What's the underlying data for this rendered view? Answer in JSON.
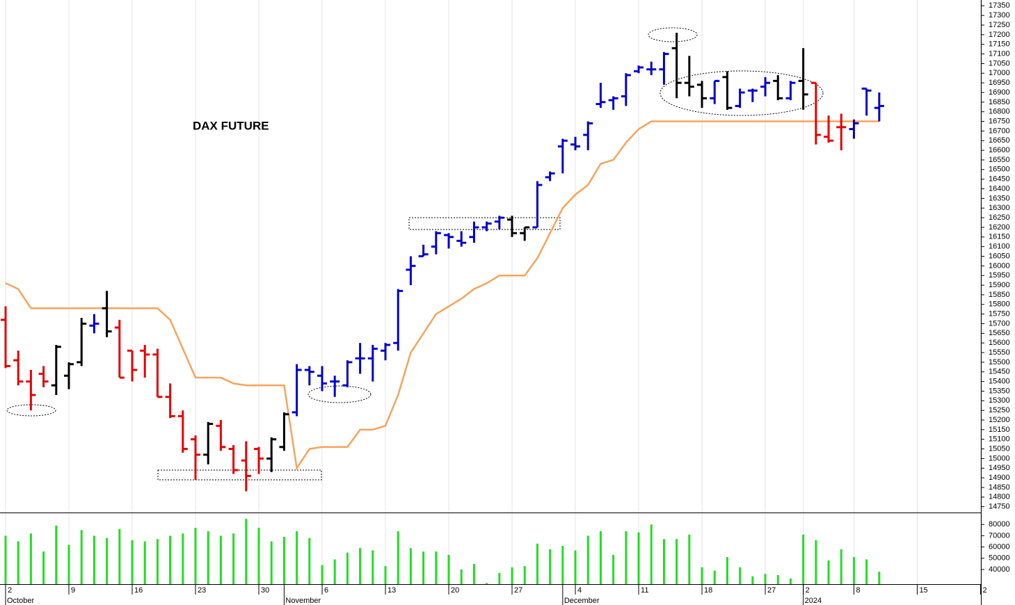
{
  "chart_data": {
    "type": "ohlc",
    "title": "DAX FUTURE",
    "xlim": [
      -0.44,
      77.03
    ],
    "xticks": [
      {
        "value": 0,
        "label": "2"
      },
      {
        "value": 5,
        "label": "9"
      },
      {
        "value": 10,
        "label": "16"
      },
      {
        "value": 15,
        "label": "23"
      },
      {
        "value": 20,
        "label": "30"
      },
      {
        "value": 25,
        "label": "6"
      },
      {
        "value": 30,
        "label": "13"
      },
      {
        "value": 35,
        "label": "20"
      },
      {
        "value": 40,
        "label": "27"
      },
      {
        "value": 45,
        "label": "4"
      },
      {
        "value": 50,
        "label": "11"
      },
      {
        "value": 55,
        "label": "18"
      },
      {
        "value": 60,
        "label": "27"
      },
      {
        "value": 63,
        "label": "2"
      },
      {
        "value": 67,
        "label": "8"
      },
      {
        "value": 72,
        "label": "15"
      },
      {
        "value": 77,
        "label": "2"
      }
    ],
    "months": [
      {
        "value": 0,
        "label": "October"
      },
      {
        "value": 22,
        "label": "November"
      },
      {
        "value": 44,
        "label": "December"
      },
      {
        "value": 63,
        "label": "2024"
      }
    ],
    "ylim": [
      14720,
      17380
    ],
    "yticks": [
      14750,
      14800,
      14850,
      14900,
      14950,
      15000,
      15050,
      15100,
      15150,
      15200,
      15250,
      15300,
      15350,
      15400,
      15450,
      15500,
      15550,
      15600,
      15650,
      15700,
      15750,
      15800,
      15850,
      15900,
      15950,
      16000,
      16050,
      16100,
      16150,
      16200,
      16250,
      16300,
      16350,
      16400,
      16450,
      16500,
      16550,
      16600,
      16650,
      16700,
      16750,
      16800,
      16850,
      16900,
      16950,
      17000,
      17050,
      17100,
      17150,
      17200,
      17250,
      17300,
      17350
    ],
    "grid": true,
    "open": [
      15720,
      15510,
      15400,
      15440,
      15380,
      15430,
      15500,
      15690,
      15780,
      15680,
      15560,
      15560,
      15540,
      15320,
      15220,
      15100,
      15020,
      15170,
      15050,
      14990,
      15050,
      15000,
      15060,
      15240,
      15460,
      15430,
      15400,
      15380,
      15520,
      15520,
      15560,
      15600,
      15980,
      16050,
      16100,
      16160,
      16130,
      16150,
      16200,
      16230,
      16240,
      16170,
      16200,
      16460,
      16620,
      16630,
      16680,
      16840,
      16860,
      16880,
      17010,
      17020,
      17020,
      17130,
      16950,
      16940,
      16870,
      16980,
      16830,
      16910,
      16930,
      16960,
      16870,
      16960,
      16950,
      16670,
      16720,
      16710,
      16920,
      16820
    ],
    "high": [
      15790,
      15560,
      15460,
      15480,
      15590,
      15500,
      15730,
      15750,
      15870,
      15720,
      15560,
      15590,
      15570,
      15390,
      15250,
      15120,
      15190,
      15200,
      15070,
      15090,
      15060,
      15110,
      15240,
      15490,
      15480,
      15480,
      15430,
      15510,
      15600,
      15590,
      15600,
      15880,
      16050,
      16110,
      16180,
      16170,
      16180,
      16230,
      16230,
      16260,
      16260,
      16200,
      16440,
      16490,
      16660,
      16670,
      16750,
      16950,
      16880,
      17000,
      17040,
      17060,
      17110,
      17210,
      17090,
      16960,
      16960,
      17010,
      16920,
      16920,
      16980,
      16990,
      16960,
      17130,
      16950,
      16780,
      16790,
      16760,
      16920,
      16900
    ],
    "low": [
      15470,
      15380,
      15250,
      15370,
      15330,
      15360,
      15480,
      15650,
      15630,
      15420,
      15400,
      15420,
      15320,
      15210,
      15030,
      14890,
      14970,
      15040,
      14920,
      14830,
      14920,
      14930,
      15040,
      15220,
      15380,
      15350,
      15320,
      15370,
      15440,
      15400,
      15510,
      15560,
      15900,
      16050,
      16060,
      16090,
      16100,
      16120,
      16180,
      16190,
      16150,
      16130,
      16200,
      16440,
      16480,
      16600,
      16600,
      16820,
      16810,
      16830,
      17000,
      16990,
      16940,
      16870,
      16880,
      16820,
      16840,
      16810,
      16820,
      16850,
      16880,
      16860,
      16860,
      16810,
      16630,
      16640,
      16600,
      16660,
      16780,
      16750
    ],
    "close": [
      15480,
      15400,
      15330,
      15400,
      15580,
      15490,
      15700,
      15700,
      15660,
      15420,
      15460,
      15540,
      15320,
      15220,
      15050,
      15020,
      15180,
      15060,
      14940,
      14910,
      15000,
      15100,
      15230,
      15460,
      15450,
      15390,
      15400,
      15500,
      15520,
      15570,
      15590,
      15870,
      16000,
      16060,
      16170,
      16150,
      16120,
      16200,
      16220,
      16250,
      16170,
      16200,
      16420,
      16480,
      16650,
      16620,
      16740,
      16850,
      16870,
      16990,
      17030,
      17020,
      17100,
      16950,
      16930,
      16870,
      16960,
      16820,
      16900,
      16910,
      16950,
      16870,
      16950,
      16890,
      16680,
      16650,
      16720,
      16740,
      16910,
      16830
    ],
    "colors": [
      "#e60000",
      "#e60000",
      "#e60000",
      "#e60000",
      "#000000",
      "#000000",
      "#000000",
      "#0000cc",
      "#000000",
      "#e60000",
      "#e60000",
      "#e60000",
      "#e60000",
      "#e60000",
      "#e60000",
      "#e60000",
      "#000000",
      "#e60000",
      "#e60000",
      "#e60000",
      "#e60000",
      "#000000",
      "#000000",
      "#0000cc",
      "#0000cc",
      "#0000cc",
      "#0000cc",
      "#0000cc",
      "#0000cc",
      "#0000cc",
      "#0000cc",
      "#0000cc",
      "#0000cc",
      "#0000cc",
      "#0000cc",
      "#0000cc",
      "#0000cc",
      "#0000cc",
      "#0000cc",
      "#0000cc",
      "#000000",
      "#000000",
      "#0000cc",
      "#0000cc",
      "#0000cc",
      "#0000cc",
      "#0000cc",
      "#0000cc",
      "#0000cc",
      "#0000cc",
      "#0000cc",
      "#0000cc",
      "#0000cc",
      "#000000",
      "#000000",
      "#000000",
      "#0000cc",
      "#000000",
      "#0000cc",
      "#0000cc",
      "#0000cc",
      "#000000",
      "#0000cc",
      "#000000",
      "#e60000",
      "#e60000",
      "#e60000",
      "#0000cc",
      "#0000cc",
      "#0000cc"
    ],
    "stop": {
      "color": "#f7a35c",
      "values": [
        15910,
        15880,
        15780,
        15780,
        15780,
        15780,
        15780,
        15780,
        15780,
        15780,
        15780,
        15780,
        15780,
        15720,
        15570,
        15420,
        15420,
        15420,
        15390,
        15380,
        15380,
        15380,
        15380,
        14950,
        15050,
        15060,
        15060,
        15060,
        15150,
        15150,
        15170,
        15330,
        15550,
        15650,
        15750,
        15790,
        15830,
        15880,
        15910,
        15950,
        15950,
        15950,
        16040,
        16170,
        16300,
        16370,
        16420,
        16530,
        16550,
        16640,
        16710,
        16750,
        16750,
        16750,
        16750,
        16750,
        16750,
        16750,
        16750,
        16750,
        16750,
        16750,
        16750,
        16750,
        16750,
        16750,
        16750,
        16750,
        16750,
        16750
      ]
    },
    "volume": {
      "color": "#22dd22",
      "ylim": [
        27000,
        90000
      ],
      "yticks": [
        40000,
        50000,
        60000,
        70000,
        80000
      ],
      "values": [
        70000,
        65000,
        72000,
        56000,
        79000,
        62000,
        75000,
        70000,
        68000,
        76000,
        66000,
        65000,
        67000,
        70000,
        72000,
        77000,
        74000,
        70000,
        72000,
        85000,
        77000,
        65000,
        69000,
        74000,
        68000,
        44000,
        49000,
        55000,
        59000,
        57000,
        43000,
        74000,
        59000,
        56000,
        56000,
        53000,
        40000,
        45000,
        28000,
        37000,
        42000,
        43000,
        63000,
        58000,
        61000,
        57000,
        70000,
        74000,
        53000,
        74000,
        73000,
        80000,
        67000,
        67000,
        71000,
        42000,
        39000,
        51000,
        42000,
        34000,
        36000,
        35000,
        32000,
        71000,
        66000,
        48000,
        58000,
        51000,
        49000,
        38000
      ]
    }
  }
}
